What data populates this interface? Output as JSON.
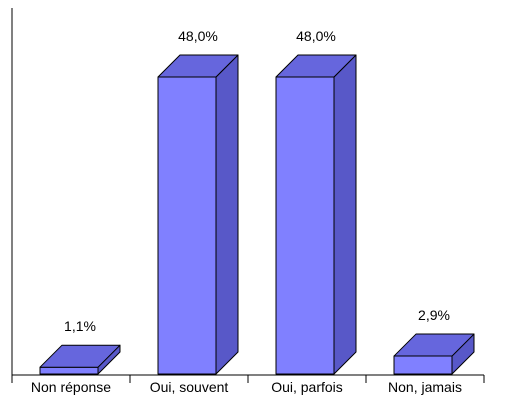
{
  "chart_data": {
    "type": "bar",
    "style": "3d",
    "categories": [
      "Non réponse",
      "Oui, souvent",
      "Oui, parfois",
      "Non, jamais"
    ],
    "values": [
      1.1,
      48.0,
      48.0,
      2.9
    ],
    "value_labels": [
      "1,1%",
      "48,0%",
      "48,0%",
      "2,9%"
    ],
    "unit": "%",
    "ylim": [
      0,
      48
    ],
    "grid": false,
    "legend": "none",
    "colors": {
      "front": "#8080ff",
      "top": "#6666dd",
      "side": "#5858c8",
      "outline": "#000000",
      "axis": "#000000"
    }
  }
}
